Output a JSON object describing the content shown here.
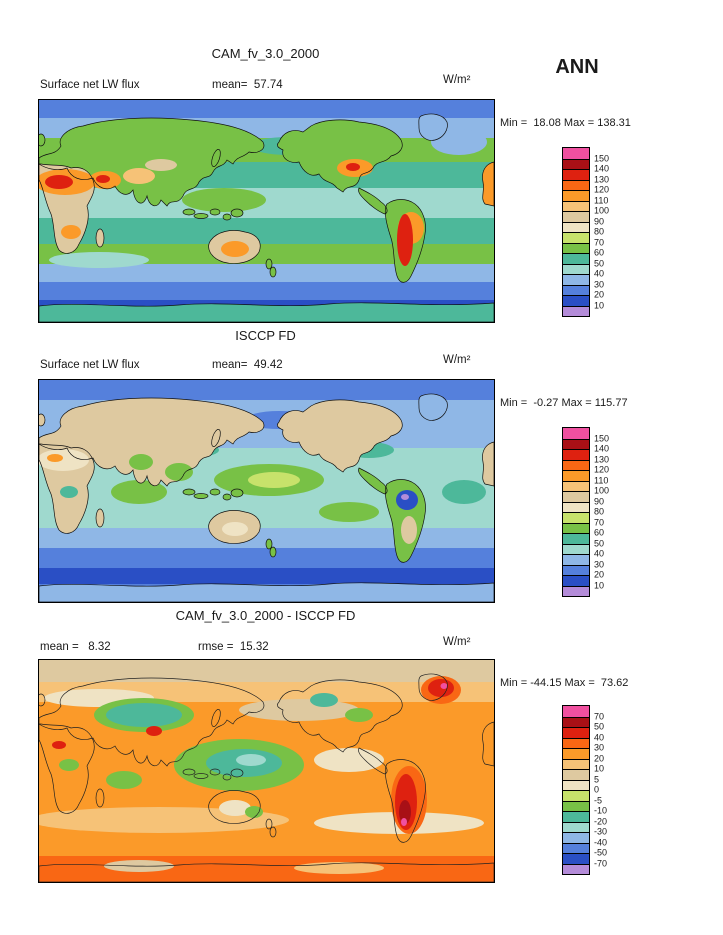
{
  "season": "ANN",
  "colorbar_colors": [
    "#F050A0",
    "#A81016",
    "#DE2110",
    "#F96714",
    "#FB9A29",
    "#F6C277",
    "#DEC9A0",
    "#EFE3C4",
    "#C7E26B",
    "#78C146",
    "#4DB89A",
    "#9FD9CE",
    "#8FB7E6",
    "#5580DC",
    "#2A4FC5",
    "#B48CD9"
  ],
  "panels": [
    {
      "title": "CAM_fv_3.0_2000",
      "left_label": "Surface net LW flux",
      "center_label": "mean=  57.74",
      "units": "W/m²",
      "minmax": "Min =  18.08 Max = 138.31",
      "colorbar_labels": [
        "150",
        "140",
        "130",
        "120",
        "110",
        "100",
        "90",
        "80",
        "70",
        "60",
        "50",
        "40",
        "30",
        "20",
        "10"
      ]
    },
    {
      "title": "ISCCP FD",
      "left_label": "Surface net LW flux",
      "center_label": "mean=  49.42",
      "units": "W/m²",
      "minmax": "Min =  -0.27 Max = 115.77",
      "colorbar_labels": [
        "150",
        "140",
        "130",
        "120",
        "110",
        "100",
        "90",
        "80",
        "70",
        "60",
        "50",
        "40",
        "30",
        "20",
        "10"
      ]
    },
    {
      "title": "CAM_fv_3.0_2000 - ISCCP FD",
      "left_label": "mean =   8.32",
      "center_label": "rmse =  15.32",
      "units": "W/m²",
      "minmax": "Min = -44.15 Max =  73.62",
      "colorbar_labels": [
        "70",
        "50",
        "40",
        "30",
        "20",
        "10",
        "5",
        "0",
        "-5",
        "-10",
        "-20",
        "-30",
        "-40",
        "-50",
        "-70"
      ]
    }
  ],
  "chart_data": [
    {
      "type": "heatmap",
      "subtype": "filled-contour global map",
      "title": "CAM_fv_3.0_2000",
      "variable": "Surface net LW flux",
      "units": "W/m²",
      "season": "ANN",
      "stats": {
        "mean": 57.74,
        "min": 18.08,
        "max": 138.31
      },
      "contour_levels": [
        10,
        20,
        30,
        40,
        50,
        60,
        70,
        80,
        90,
        100,
        110,
        120,
        130,
        140,
        150
      ],
      "legend_position": "right",
      "projection": "equirectangular, longitudes 0-360E, latitudes 90S-90N"
    },
    {
      "type": "heatmap",
      "subtype": "filled-contour global map",
      "title": "ISCCP FD",
      "variable": "Surface net LW flux",
      "units": "W/m²",
      "season": "ANN",
      "stats": {
        "mean": 49.42,
        "min": -0.27,
        "max": 115.77
      },
      "contour_levels": [
        10,
        20,
        30,
        40,
        50,
        60,
        70,
        80,
        90,
        100,
        110,
        120,
        130,
        140,
        150
      ],
      "legend_position": "right",
      "projection": "equirectangular, longitudes 0-360E, latitudes 90S-90N"
    },
    {
      "type": "heatmap",
      "subtype": "filled-contour global map difference",
      "title": "CAM_fv_3.0_2000 - ISCCP FD",
      "variable": "Surface net LW flux difference",
      "units": "W/m²",
      "season": "ANN",
      "stats": {
        "mean": 8.32,
        "rmse": 15.32,
        "min": -44.15,
        "max": 73.62
      },
      "contour_levels": [
        -70,
        -50,
        -40,
        -30,
        -20,
        -10,
        -5,
        0,
        5,
        10,
        20,
        30,
        40,
        50,
        70
      ],
      "legend_position": "right",
      "projection": "equirectangular, longitudes 0-360E, latitudes 90S-90N"
    }
  ]
}
